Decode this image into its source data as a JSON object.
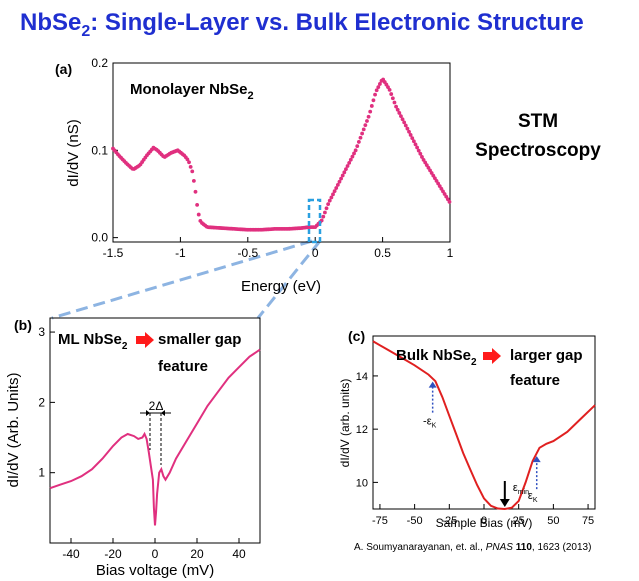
{
  "title": {
    "prefix": "NbSe",
    "subscript": "2",
    "suffix": ":  Single-Layer vs. Bulk Electronic Structure"
  },
  "side_label": {
    "line1": "STM",
    "line2": "Spectroscopy"
  },
  "citation": {
    "authors": "A. Soumyanarayanan, et. al., ",
    "journal": "PNAS",
    "volume": "110",
    "pages": ", 1623  (2013)"
  },
  "colors": {
    "title": "#1f2fd0",
    "monolayer_curve": "#e0307f",
    "bulk_curve": "#e02020",
    "highlight_box": "#2aa0e0",
    "zoom_lines": "#8db4e2",
    "arrow_red": "#ff1a1a",
    "arrow_blue": "#3050c0"
  },
  "chart_data": [
    {
      "panel": "(a)",
      "type": "scatter",
      "annotation": {
        "prefix": "Monolayer NbSe",
        "subscript": "2"
      },
      "xlabel": "Energy (eV)",
      "ylabel": "dI/dV (nS)",
      "xlim": [
        -1.5,
        1.0
      ],
      "ylim": [
        -0.005,
        0.2
      ],
      "xticks": [
        "-1.5",
        "-1",
        "-0.5",
        "0",
        "0.5",
        "1"
      ],
      "xtick_values": [
        -1.5,
        -1.0,
        -0.5,
        0.0,
        0.5,
        1.0
      ],
      "yticks": [
        "0.0",
        "0.1",
        "0.2"
      ],
      "ytick_values": [
        0.0,
        0.1,
        0.2
      ],
      "x": [
        -1.5,
        -1.45,
        -1.4,
        -1.35,
        -1.3,
        -1.25,
        -1.2,
        -1.17,
        -1.12,
        -1.07,
        -1.02,
        -0.97,
        -0.94,
        -0.91,
        -0.89,
        -0.87,
        -0.85,
        -0.8,
        -0.7,
        -0.6,
        -0.5,
        -0.4,
        -0.3,
        -0.2,
        -0.1,
        -0.05,
        0.0,
        0.05,
        0.1,
        0.2,
        0.3,
        0.4,
        0.45,
        0.5,
        0.55,
        0.6,
        0.7,
        0.8,
        0.9,
        1.0
      ],
      "y": [
        0.102,
        0.093,
        0.085,
        0.078,
        0.083,
        0.094,
        0.103,
        0.1,
        0.092,
        0.097,
        0.1,
        0.094,
        0.088,
        0.075,
        0.055,
        0.03,
        0.018,
        0.012,
        0.011,
        0.01,
        0.009,
        0.009,
        0.01,
        0.01,
        0.011,
        0.012,
        0.012,
        0.02,
        0.04,
        0.07,
        0.1,
        0.14,
        0.167,
        0.182,
        0.17,
        0.15,
        0.12,
        0.09,
        0.065,
        0.04
      ]
    },
    {
      "panel": "(b)",
      "type": "line",
      "annotation": {
        "prefix": "ML NbSe",
        "subscript": "2",
        "line1": "smaller gap",
        "line2": "feature"
      },
      "gap_label": "2Δ",
      "xlabel": "Bias voltage (mV)",
      "ylabel": "dI/dV (Arb. Units)",
      "xlim": [
        -50,
        50
      ],
      "ylim": [
        0,
        3.2
      ],
      "xticks": [
        "-40",
        "-20",
        "0",
        "20",
        "40"
      ],
      "xtick_values": [
        -40,
        -20,
        0,
        20,
        40
      ],
      "yticks": [
        "1",
        "2",
        "3"
      ],
      "ytick_values": [
        1,
        2,
        3
      ],
      "x": [
        -50,
        -45,
        -40,
        -35,
        -30,
        -25,
        -20,
        -16,
        -13,
        -10,
        -8,
        -6,
        -5,
        -4,
        -3,
        -2,
        -1,
        -0.5,
        0,
        0.5,
        1,
        2,
        3,
        4,
        5,
        7,
        10,
        15,
        20,
        25,
        30,
        35,
        40,
        45,
        50
      ],
      "y": [
        0.78,
        0.83,
        0.88,
        0.95,
        1.05,
        1.2,
        1.38,
        1.5,
        1.55,
        1.52,
        1.48,
        1.5,
        1.55,
        1.48,
        1.3,
        1.1,
        0.9,
        0.5,
        0.25,
        0.45,
        0.7,
        1.0,
        1.05,
        0.95,
        0.9,
        1.0,
        1.2,
        1.45,
        1.7,
        1.95,
        2.15,
        2.35,
        2.5,
        2.65,
        2.75
      ]
    },
    {
      "panel": "(c)",
      "type": "line",
      "annotation": {
        "prefix": "Bulk NbSe",
        "subscript": "2",
        "line1": "larger gap",
        "line2": "feature"
      },
      "marker_labels": {
        "neg_k_prefix": "-ε",
        "k_prefix": "ε",
        "k_sub": "K",
        "min_prefix": "ε",
        "min_sub": "min"
      },
      "marker_values": {
        "neg_k": -37,
        "min": 15,
        "k": 38
      },
      "xlabel": "Sample Bias (mV)",
      "ylabel": "dI/dV (arb. units)",
      "xlim": [
        -80,
        80
      ],
      "ylim": [
        9,
        15.5
      ],
      "xticks": [
        "-75",
        "-50",
        "-25",
        "0",
        "25",
        "50",
        "75"
      ],
      "xtick_values": [
        -75,
        -50,
        -25,
        0,
        25,
        50,
        75
      ],
      "yticks": [
        "10",
        "12",
        "14"
      ],
      "ytick_values": [
        10,
        12,
        14
      ],
      "x": [
        -80,
        -70,
        -60,
        -50,
        -40,
        -35,
        -30,
        -25,
        -20,
        -15,
        -10,
        -5,
        0,
        5,
        10,
        15,
        20,
        25,
        30,
        35,
        40,
        45,
        50,
        60,
        70,
        80
      ],
      "y": [
        15.3,
        15.0,
        14.7,
        14.4,
        14.05,
        13.8,
        13.2,
        12.5,
        11.8,
        11.1,
        10.5,
        9.9,
        9.4,
        9.12,
        9.02,
        9.0,
        9.05,
        9.3,
        10.0,
        10.8,
        11.3,
        11.45,
        11.55,
        11.9,
        12.4,
        12.9
      ]
    }
  ]
}
